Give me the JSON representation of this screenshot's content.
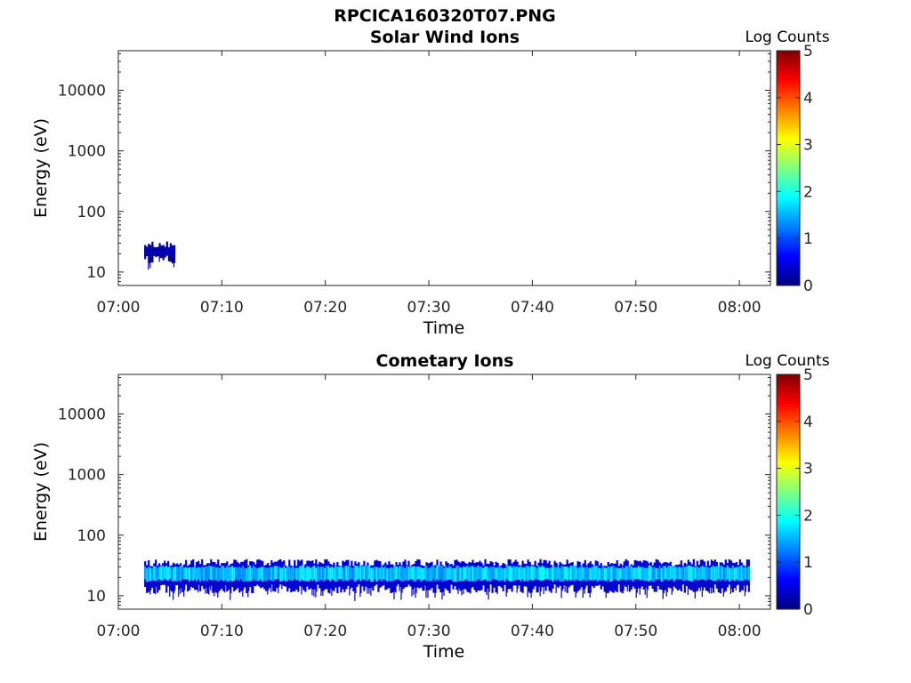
{
  "figure": {
    "title": "RPCICA160320T07.PNG"
  },
  "chart_data": [
    {
      "type": "heatmap",
      "title": "Solar Wind Ions",
      "xlabel": "Time",
      "ylabel": "Energy (eV)",
      "x_ticks": [
        "07:00",
        "07:10",
        "07:20",
        "07:30",
        "07:40",
        "07:50",
        "08:00"
      ],
      "xlim": [
        "07:00",
        "08:03"
      ],
      "y_scale": "log",
      "y_ticks": [
        10,
        100,
        1000,
        10000
      ],
      "ylim": [
        6,
        45000
      ],
      "colorbar": {
        "label": "Log Counts",
        "range": [
          0,
          5
        ],
        "ticks": [
          0,
          1,
          2,
          3,
          4,
          5
        ],
        "colormap": "jet"
      },
      "regions": [
        {
          "t_start": "07:02.5",
          "t_end": "07:05.5",
          "e_low": 16,
          "e_high": 28,
          "e_core_low": 19,
          "e_core_high": 26,
          "level_min": 0,
          "level_max": 0.3
        }
      ]
    },
    {
      "type": "heatmap",
      "title": "Cometary Ions",
      "xlabel": "Time",
      "ylabel": "Energy (eV)",
      "x_ticks": [
        "07:00",
        "07:10",
        "07:20",
        "07:30",
        "07:40",
        "07:50",
        "08:00"
      ],
      "xlim": [
        "07:00",
        "08:03"
      ],
      "y_scale": "log",
      "y_ticks": [
        10,
        100,
        1000,
        10000
      ],
      "ylim": [
        6,
        45000
      ],
      "colorbar": {
        "label": "Log Counts",
        "range": [
          0,
          5
        ],
        "ticks": [
          0,
          1,
          2,
          3,
          4,
          5
        ],
        "colormap": "jet"
      },
      "regions": [
        {
          "t_start": "07:02.5",
          "t_end": "08:01",
          "e_low": 13,
          "e_high": 35,
          "e_core_low": 18,
          "e_core_high": 30,
          "level_min": 0.3,
          "level_max": 2.0
        }
      ]
    }
  ]
}
